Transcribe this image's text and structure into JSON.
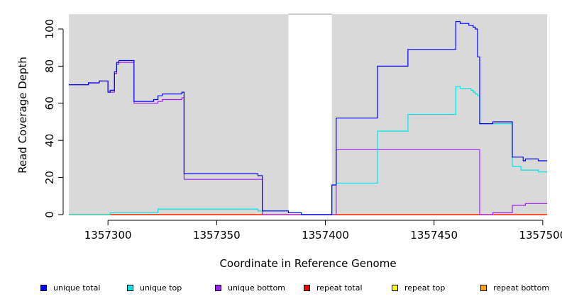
{
  "chart_data": {
    "type": "line",
    "title": "",
    "xlabel": "Coordinate in Reference Genome",
    "ylabel": "Read Coverage Depth",
    "xlim": [
      1357282,
      1357502
    ],
    "ylim": [
      0,
      108
    ],
    "x_ticks": [
      1357300,
      1357350,
      1357400,
      1357450,
      1357500
    ],
    "x_tick_labels": [
      "1357300",
      "1357350",
      "1357400",
      "1357450",
      "1357500"
    ],
    "y_ticks": [
      0,
      20,
      40,
      60,
      80,
      100
    ],
    "y_tick_labels": [
      "0",
      "20",
      "40",
      "60",
      "80",
      "100"
    ],
    "grid": false,
    "background_color": "#d9d9d9",
    "uncovered_region": [
      1357383,
      1357403
    ],
    "legend_position": "bottom",
    "series": [
      {
        "name": "unique total",
        "color": "#0000ff",
        "step": true,
        "points": [
          [
            1357282,
            70
          ],
          [
            1357291,
            71
          ],
          [
            1357296,
            72
          ],
          [
            1357300,
            66
          ],
          [
            1357301,
            67
          ],
          [
            1357303,
            77
          ],
          [
            1357304,
            82
          ],
          [
            1357305,
            83
          ],
          [
            1357312,
            61
          ],
          [
            1357321,
            62
          ],
          [
            1357323,
            64
          ],
          [
            1357325,
            65
          ],
          [
            1357334,
            66
          ],
          [
            1357335,
            22
          ],
          [
            1357369,
            21
          ],
          [
            1357371,
            2
          ],
          [
            1357383,
            1
          ],
          [
            1357389,
            0
          ],
          [
            1357403,
            16
          ],
          [
            1357405,
            52
          ],
          [
            1357424,
            80
          ],
          [
            1357438,
            89
          ],
          [
            1357460,
            104
          ],
          [
            1357462,
            103
          ],
          [
            1357466,
            102
          ],
          [
            1357468,
            101
          ],
          [
            1357469,
            100
          ],
          [
            1357470,
            85
          ],
          [
            1357471,
            49
          ],
          [
            1357477,
            50
          ],
          [
            1357486,
            31
          ],
          [
            1357491,
            29
          ],
          [
            1357492,
            30
          ],
          [
            1357498,
            29
          ],
          [
            1357502,
            29
          ]
        ]
      },
      {
        "name": "unique top",
        "color": "#00e5e5",
        "step": true,
        "points": [
          [
            1357282,
            0
          ],
          [
            1357301,
            1
          ],
          [
            1357323,
            3
          ],
          [
            1357369,
            2
          ],
          [
            1357371,
            2
          ],
          [
            1357383,
            1
          ],
          [
            1357389,
            0
          ],
          [
            1357403,
            16
          ],
          [
            1357405,
            17
          ],
          [
            1357424,
            45
          ],
          [
            1357438,
            54
          ],
          [
            1357460,
            69
          ],
          [
            1357462,
            68
          ],
          [
            1357467,
            67
          ],
          [
            1357468,
            66
          ],
          [
            1357469,
            65
          ],
          [
            1357470,
            64
          ],
          [
            1357471,
            49
          ],
          [
            1357486,
            26
          ],
          [
            1357490,
            24
          ],
          [
            1357498,
            23
          ],
          [
            1357502,
            23
          ]
        ]
      },
      {
        "name": "unique bottom",
        "color": "#a020f0",
        "step": true,
        "points": [
          [
            1357282,
            70
          ],
          [
            1357291,
            71
          ],
          [
            1357296,
            72
          ],
          [
            1357300,
            66
          ],
          [
            1357301,
            66
          ],
          [
            1357303,
            76
          ],
          [
            1357304,
            81
          ],
          [
            1357305,
            82
          ],
          [
            1357312,
            60
          ],
          [
            1357321,
            60
          ],
          [
            1357323,
            61
          ],
          [
            1357325,
            62
          ],
          [
            1357334,
            63
          ],
          [
            1357335,
            19
          ],
          [
            1357371,
            0
          ],
          [
            1357405,
            35
          ],
          [
            1357471,
            0
          ],
          [
            1357477,
            1
          ],
          [
            1357486,
            5
          ],
          [
            1357492,
            6
          ],
          [
            1357502,
            6
          ]
        ]
      },
      {
        "name": "repeat total",
        "color": "#ff0000",
        "step": true,
        "points": [
          [
            1357282,
            0
          ],
          [
            1357502,
            0
          ]
        ]
      },
      {
        "name": "repeat top",
        "color": "#ffff00",
        "step": true,
        "points": [
          [
            1357282,
            0
          ],
          [
            1357502,
            0
          ]
        ]
      },
      {
        "name": "repeat bottom",
        "color": "#ffa500",
        "step": true,
        "points": [
          [
            1357282,
            0
          ],
          [
            1357502,
            0
          ]
        ]
      }
    ]
  }
}
